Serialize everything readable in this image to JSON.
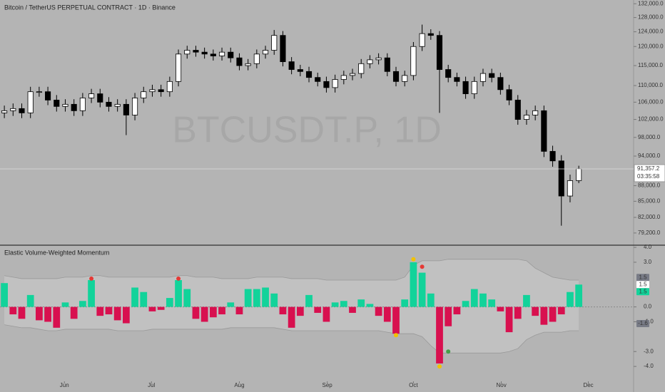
{
  "chart_data": [
    {
      "type": "candlestick",
      "title": "Bitcoin / TetherUS PERPETUAL CONTRACT · 1D · Binance",
      "watermark": "BTCUSDT.P, 1D",
      "log_scale": true,
      "ylim": [
        77200,
        133100
      ],
      "xlim": [
        0,
        72.8
      ],
      "yticks": [
        {
          "value": 132000,
          "label": "132,000.0"
        },
        {
          "value": 128000,
          "label": "128,000.0"
        },
        {
          "value": 124000,
          "label": "124,000.0"
        },
        {
          "value": 120000,
          "label": "120,000.0"
        },
        {
          "value": 115000,
          "label": "115,000.0"
        },
        {
          "value": 110000,
          "label": "110,000.0"
        },
        {
          "value": 106000,
          "label": "106,000.0"
        },
        {
          "value": 102000,
          "label": "102,000.0"
        },
        {
          "value": 98000,
          "label": "98,000.0"
        },
        {
          "value": 94000,
          "label": "94,000.0"
        },
        {
          "value": 88000,
          "label": "88,000.0"
        },
        {
          "value": 85000,
          "label": "85,000.0"
        },
        {
          "value": 82000,
          "label": "82,000.0"
        },
        {
          "value": 79200,
          "label": "79,200.0"
        }
      ],
      "up_color": "#ffffff",
      "down_color": "#000000",
      "open": [
        103500,
        104000,
        104500,
        103500,
        108500,
        108500,
        106500,
        105000,
        105500,
        104000,
        107000,
        108000,
        106000,
        105000,
        105500,
        103000,
        107000,
        108500,
        109000,
        108500,
        111000,
        118000,
        119000,
        118500,
        118000,
        117500,
        118500,
        117000,
        115000,
        115500,
        118000,
        119000,
        123000,
        116000,
        114000,
        113500,
        112000,
        111000,
        109500,
        111500,
        112500,
        113000,
        115500,
        116500,
        117000,
        113500,
        111000,
        112500,
        120000,
        123500,
        123000,
        114000,
        112000,
        111000,
        108000,
        111000,
        113000,
        112000,
        109000,
        106500,
        102000,
        103000,
        104000,
        95000,
        93000,
        86000,
        89000
      ],
      "high": [
        105200,
        105700,
        105700,
        109700,
        109700,
        109700,
        107700,
        106700,
        106700,
        108200,
        109200,
        109200,
        107200,
        106700,
        106700,
        108200,
        109700,
        110200,
        110200,
        112200,
        119200,
        120200,
        120200,
        119700,
        119200,
        119700,
        119700,
        118200,
        116700,
        119200,
        120200,
        124500,
        124200,
        117200,
        115200,
        114700,
        113200,
        112200,
        112700,
        113700,
        114200,
        116700,
        117700,
        118200,
        118200,
        114700,
        113700,
        121200,
        126000,
        124700,
        124200,
        115200,
        113200,
        112200,
        112200,
        114200,
        114200,
        113200,
        110200,
        107700,
        104200,
        105200,
        105200,
        96200,
        94200,
        90200,
        92000
      ],
      "low": [
        102300,
        102800,
        102300,
        102300,
        107300,
        105300,
        103800,
        103800,
        102800,
        102800,
        105800,
        104800,
        103800,
        103800,
        98500,
        101800,
        105800,
        107300,
        107300,
        107300,
        109800,
        116800,
        117300,
        116800,
        116300,
        116300,
        115800,
        113800,
        113800,
        114300,
        116800,
        117800,
        114800,
        112800,
        112300,
        110800,
        109800,
        108300,
        108300,
        110300,
        111300,
        111800,
        114300,
        115300,
        112300,
        109800,
        109800,
        111300,
        118800,
        121800,
        103500,
        110800,
        109800,
        106800,
        106800,
        109800,
        110800,
        107800,
        105300,
        100800,
        100800,
        101800,
        93800,
        91800,
        80500,
        84800,
        88500
      ],
      "close": [
        104000,
        104500,
        103500,
        108500,
        108500,
        106500,
        105000,
        105500,
        104000,
        107000,
        108000,
        106000,
        105000,
        105500,
        103000,
        107000,
        108500,
        109000,
        108500,
        111000,
        118000,
        119000,
        118500,
        118000,
        117500,
        118500,
        117000,
        115000,
        115500,
        118000,
        119000,
        123000,
        116000,
        114000,
        113500,
        112000,
        111000,
        109500,
        111500,
        112500,
        113000,
        115500,
        116500,
        117000,
        113500,
        111000,
        112500,
        120000,
        123500,
        123000,
        114000,
        112000,
        111000,
        108000,
        111000,
        113000,
        112000,
        109000,
        106500,
        102000,
        103000,
        104000,
        95000,
        93000,
        86000,
        89000,
        91357.2
      ],
      "last_price_label": "91,357.2",
      "countdown": "03:35:58"
    },
    {
      "type": "histogram",
      "title": "Elastic Volume-Weighted Momentum",
      "xlim": [
        0,
        72.8
      ],
      "ylim": [
        -5,
        4.1
      ],
      "yticks": [
        {
          "value": 4,
          "label": "4.0"
        },
        {
          "value": 3,
          "label": "3.0"
        },
        {
          "value": 0,
          "label": "0.0"
        },
        {
          "value": -1,
          "label": "-1.0"
        },
        {
          "value": -3,
          "label": "-3.0"
        },
        {
          "value": -4,
          "label": "-4.0"
        }
      ],
      "xticks": [
        {
          "value": 7.4,
          "label": "Jun"
        },
        {
          "value": 17.4,
          "label": "Jul"
        },
        {
          "value": 27.5,
          "label": "Aug"
        },
        {
          "value": 37.6,
          "label": "Sep"
        },
        {
          "value": 47.5,
          "label": "Oct"
        },
        {
          "value": 57.6,
          "label": "Nov"
        },
        {
          "value": 67.6,
          "label": "Dec"
        }
      ],
      "pos_color": "#12d39a",
      "neg_color": "#d8104f",
      "band_color": "#c4c4c4",
      "values": [
        1.6,
        -0.5,
        -0.8,
        0.8,
        -0.9,
        -1.0,
        -1.4,
        0.3,
        -0.8,
        0.4,
        1.8,
        -0.6,
        -0.5,
        -0.9,
        -1.1,
        1.3,
        1.0,
        -0.3,
        -0.2,
        0.6,
        1.8,
        1.2,
        -0.8,
        -1.0,
        -0.7,
        -0.5,
        0.3,
        -0.5,
        1.2,
        1.2,
        1.3,
        0.9,
        -0.5,
        -1.4,
        -0.6,
        0.8,
        -0.4,
        -1.0,
        0.3,
        0.4,
        -0.4,
        0.5,
        0.2,
        -0.6,
        -1.0,
        -1.8,
        0.5,
        3.0,
        2.3,
        0.9,
        -3.8,
        -1.3,
        -0.5,
        0.4,
        1.2,
        0.9,
        0.5,
        -0.3,
        -1.7,
        -0.8,
        0.8,
        -0.6,
        -1.2,
        -1.0,
        -0.5,
        1.0,
        1.5
      ],
      "upper_band": [
        2.1,
        2.0,
        1.9,
        1.9,
        1.9,
        1.9,
        1.9,
        2.0,
        2.0,
        2.0,
        2.1,
        2.1,
        2.0,
        2.0,
        2.0,
        2.0,
        2.0,
        2.0,
        2.0,
        2.0,
        2.1,
        2.1,
        2.0,
        2.0,
        2.0,
        1.9,
        1.9,
        1.9,
        1.9,
        2.0,
        2.0,
        2.0,
        2.0,
        1.9,
        1.9,
        1.9,
        1.9,
        1.8,
        1.8,
        1.8,
        1.8,
        1.8,
        1.8,
        1.8,
        1.8,
        1.8,
        2.0,
        2.8,
        3.1,
        3.1,
        3.1,
        3.2,
        3.2,
        3.2,
        3.2,
        3.2,
        3.2,
        3.2,
        3.2,
        3.2,
        3.1,
        2.6,
        2.3,
        2.0,
        1.9,
        1.8,
        1.8
      ],
      "lower_band": [
        -1.2,
        -1.3,
        -1.4,
        -1.4,
        -1.5,
        -1.6,
        -1.6,
        -1.5,
        -1.5,
        -1.5,
        -1.5,
        -1.5,
        -1.5,
        -1.6,
        -1.6,
        -1.6,
        -1.6,
        -1.5,
        -1.5,
        -1.5,
        -1.5,
        -1.5,
        -1.5,
        -1.5,
        -1.5,
        -1.5,
        -1.4,
        -1.4,
        -1.4,
        -1.4,
        -1.4,
        -1.4,
        -1.5,
        -1.6,
        -1.6,
        -1.6,
        -1.6,
        -1.6,
        -1.6,
        -1.6,
        -1.6,
        -1.6,
        -1.6,
        -1.6,
        -1.7,
        -1.8,
        -1.8,
        -1.8,
        -2.0,
        -2.6,
        -3.1,
        -3.1,
        -3.1,
        -3.1,
        -3.1,
        -3.1,
        -3.1,
        -3.1,
        -3.0,
        -2.8,
        -2.2,
        -1.9,
        -1.7,
        -1.7,
        -1.7,
        -1.6,
        -1.6
      ],
      "signals": [
        {
          "index": 10,
          "value": 1.9,
          "color": "#e53935"
        },
        {
          "index": 20,
          "value": 1.9,
          "color": "#e53935"
        },
        {
          "index": 45,
          "value": -1.9,
          "color": "#f2c200"
        },
        {
          "index": 47,
          "value": 3.2,
          "color": "#f2c200"
        },
        {
          "index": 48,
          "value": 2.7,
          "color": "#e53935"
        },
        {
          "index": 50,
          "value": -4.0,
          "color": "#f2c200"
        },
        {
          "index": 51,
          "value": -3.0,
          "color": "#43a047"
        }
      ],
      "value_tags": [
        {
          "value": 1.5,
          "label": "1.5",
          "color": "#787b86"
        },
        {
          "value": 1.5,
          "label": "1.5",
          "color": "#ffffff"
        },
        {
          "value": 1.5,
          "label": "1.5",
          "color": "#12d39a"
        },
        {
          "value": -1.6,
          "label": "-1.6",
          "color": "#787b86"
        }
      ]
    }
  ]
}
